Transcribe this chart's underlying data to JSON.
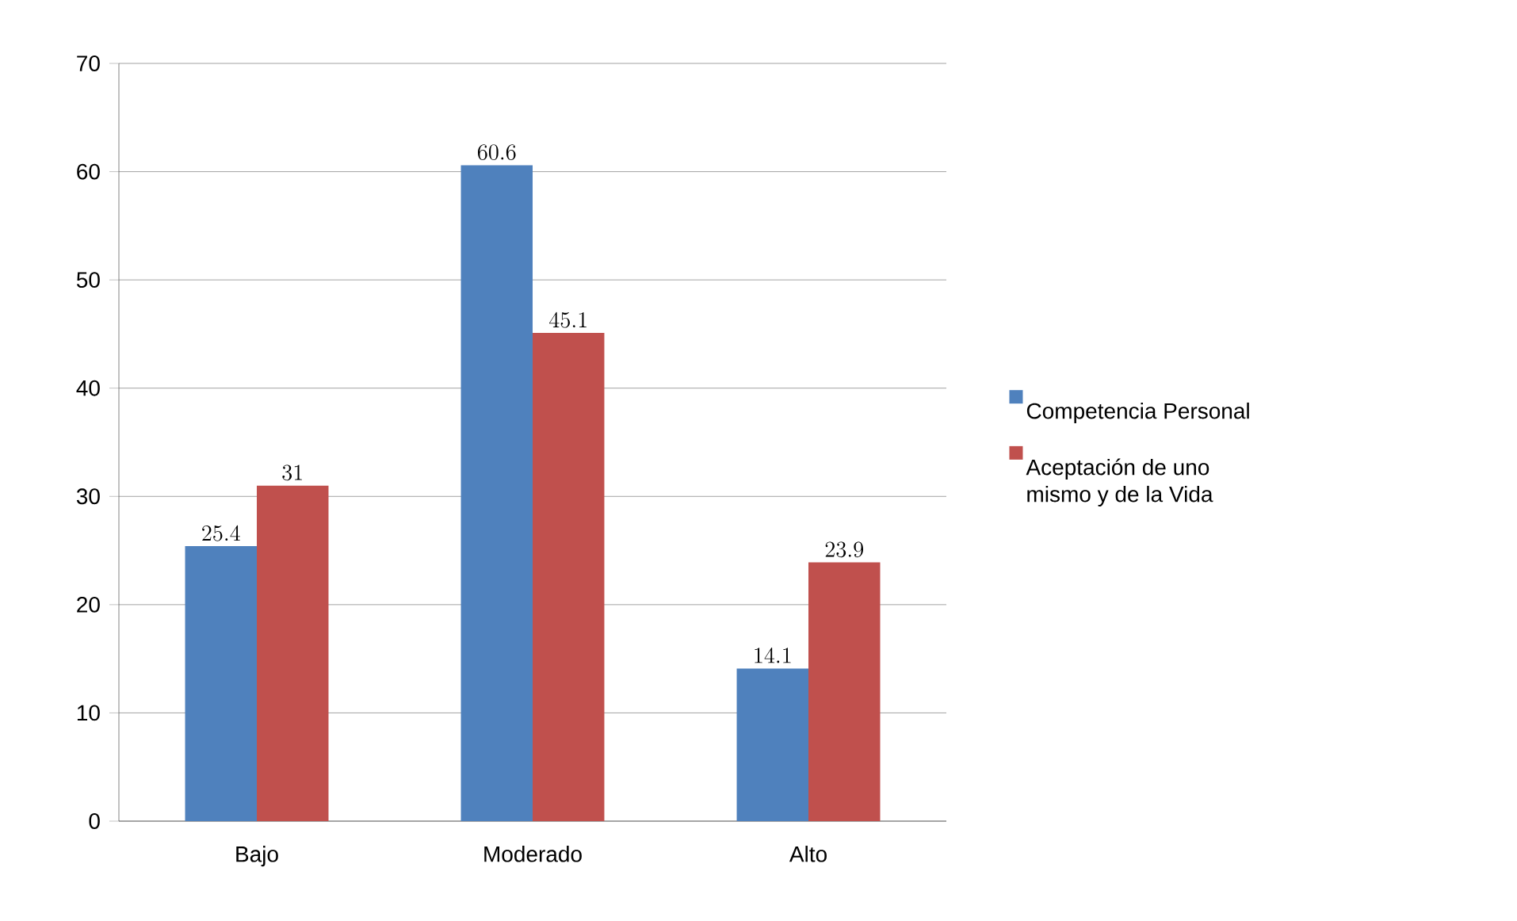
{
  "chart_data": {
    "type": "bar",
    "categories": [
      "Bajo",
      "Moderado",
      "Alto"
    ],
    "series": [
      {
        "name": "Competencia Personal",
        "color": "#4f81bd",
        "values": [
          25.4,
          60.6,
          14.1
        ]
      },
      {
        "name": "Aceptación de uno mismo y de la Vida",
        "color": "#c0504d",
        "values": [
          31,
          45.1,
          23.9
        ]
      }
    ],
    "ylim": [
      0,
      70
    ],
    "yticks": [
      0,
      10,
      20,
      30,
      40,
      50,
      60,
      70
    ],
    "grid": "y",
    "legend": "right",
    "data_labels": true
  }
}
